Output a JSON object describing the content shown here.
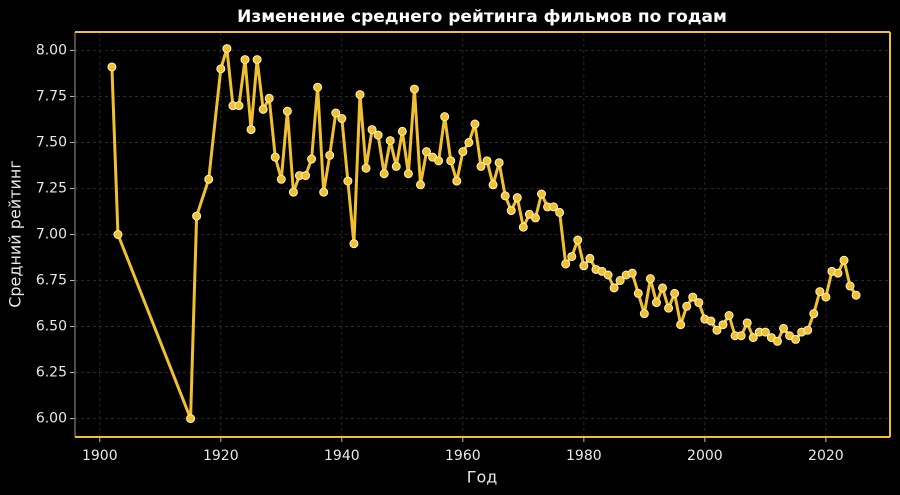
{
  "chart_data": {
    "type": "line",
    "title": "Изменение среднего рейтинга фильмов по годам",
    "x_label": "Год",
    "y_label": "Средний рейтинг",
    "color": "#f0c030",
    "grid": true,
    "xlim": [
      1895.9,
      2030.6
    ],
    "ylim": [
      5.9,
      8.1
    ],
    "xticks": [
      1900,
      1920,
      1940,
      1960,
      1980,
      2000,
      2020
    ],
    "yticks": [
      {
        "value": 6,
        "label": "6.00"
      },
      {
        "value": 6.25,
        "label": "6.25"
      },
      {
        "value": 6.5,
        "label": "6.50"
      },
      {
        "value": 6.75,
        "label": "6.75"
      },
      {
        "value": 7,
        "label": "7.00"
      },
      {
        "value": 7.25,
        "label": "7.25"
      },
      {
        "value": 7.5,
        "label": "7.50"
      },
      {
        "value": 7.75,
        "label": "7.75"
      },
      {
        "value": 8,
        "label": "8.00"
      }
    ],
    "x": [
      1902,
      1903,
      1915,
      1916,
      1918,
      1920,
      1921,
      1922,
      1923,
      1924,
      1925,
      1926,
      1927,
      1928,
      1929,
      1930,
      1931,
      1932,
      1933,
      1934,
      1935,
      1936,
      1937,
      1938,
      1939,
      1940,
      1941,
      1942,
      1943,
      1944,
      1945,
      1946,
      1947,
      1948,
      1949,
      1950,
      1951,
      1952,
      1953,
      1954,
      1955,
      1956,
      1957,
      1958,
      1959,
      1960,
      1961,
      1962,
      1963,
      1964,
      1965,
      1966,
      1967,
      1968,
      1969,
      1970,
      1971,
      1972,
      1973,
      1974,
      1975,
      1976,
      1977,
      1978,
      1979,
      1980,
      1981,
      1982,
      1983,
      1984,
      1985,
      1986,
      1987,
      1988,
      1989,
      1990,
      1991,
      1992,
      1993,
      1994,
      1995,
      1996,
      1997,
      1998,
      1999,
      2000,
      2001,
      2002,
      2003,
      2004,
      2005,
      2006,
      2007,
      2008,
      2009,
      2010,
      2011,
      2012,
      2013,
      2014,
      2015,
      2016,
      2017,
      2018,
      2019,
      2020,
      2021,
      2022,
      2023,
      2024,
      2025
    ],
    "values": [
      7.91,
      7.0,
      6.0,
      7.1,
      7.3,
      7.9,
      8.01,
      7.7,
      7.7,
      7.95,
      7.57,
      7.95,
      7.68,
      7.74,
      7.42,
      7.3,
      7.67,
      7.23,
      7.32,
      7.32,
      7.41,
      7.8,
      7.23,
      7.43,
      7.66,
      7.63,
      7.29,
      6.95,
      7.76,
      7.36,
      7.57,
      7.54,
      7.33,
      7.51,
      7.37,
      7.56,
      7.33,
      7.79,
      7.27,
      7.45,
      7.42,
      7.4,
      7.64,
      7.4,
      7.29,
      7.45,
      7.5,
      7.6,
      7.37,
      7.4,
      7.27,
      7.39,
      7.21,
      7.13,
      7.2,
      7.04,
      7.11,
      7.09,
      7.22,
      7.15,
      7.15,
      7.12,
      6.84,
      6.88,
      6.97,
      6.83,
      6.87,
      6.81,
      6.8,
      6.78,
      6.71,
      6.75,
      6.78,
      6.79,
      6.68,
      6.57,
      6.76,
      6.63,
      6.71,
      6.6,
      6.68,
      6.51,
      6.61,
      6.66,
      6.63,
      6.54,
      6.53,
      6.48,
      6.51,
      6.56,
      6.45,
      6.45,
      6.52,
      6.44,
      6.47,
      6.47,
      6.44,
      6.42,
      6.49,
      6.45,
      6.43,
      6.47,
      6.48,
      6.57,
      6.69,
      6.66,
      6.8,
      6.79,
      6.86,
      6.72,
      6.67
    ]
  }
}
